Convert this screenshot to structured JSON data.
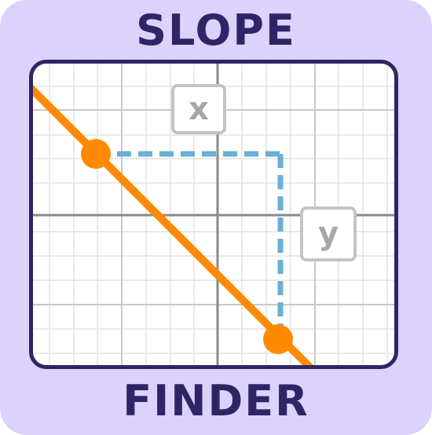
{
  "title": {
    "top": "SLOPE",
    "bottom": "FINDER"
  },
  "labels": {
    "run": "x",
    "rise": "y"
  },
  "colors": {
    "background": "#dcd2fc",
    "title_text": "#2f2566",
    "panel_border": "#2f2566",
    "line": "#ff8a00",
    "dashed_guides": "#6aafd6",
    "grid_minor": "#e3e3e3",
    "grid_major": "#c9c9c9",
    "axes": "#8a8a8a",
    "label_border": "#c4c4c4",
    "label_text": "#a7a7a7"
  },
  "graph": {
    "icons": [
      "slope-line",
      "point-1",
      "point-2",
      "run-guide-dashed",
      "rise-guide-dashed"
    ]
  }
}
